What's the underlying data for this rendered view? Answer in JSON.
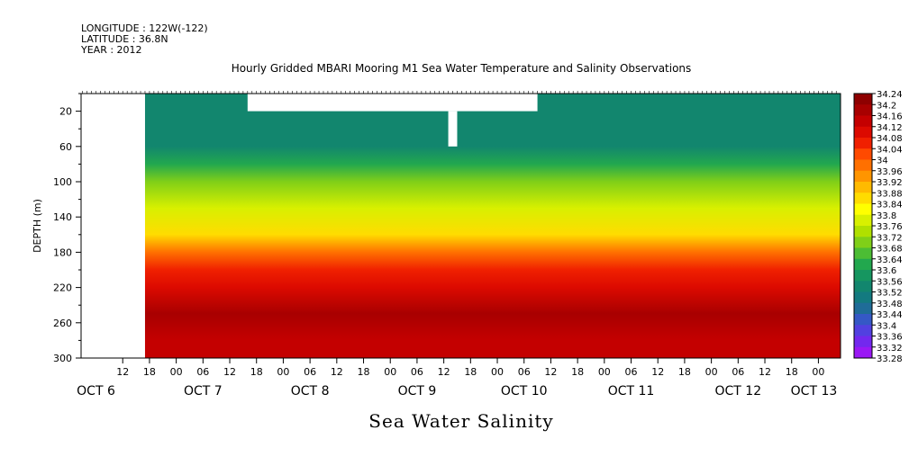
{
  "header": {
    "longitude": "LONGITUDE : 122W(-122)",
    "latitude": "LATITUDE : 36.8N",
    "year": "YEAR : 2012"
  },
  "chart_data": {
    "type": "heatmap",
    "title": "Hourly Gridded MBARI Mooring M1 Sea Water Temperature and Salinity Observations",
    "footer_label": "Sea Water Salinity",
    "ylabel": "DEPTH (m)",
    "ylim": [
      300,
      0
    ],
    "yticks": [
      20,
      60,
      100,
      140,
      180,
      220,
      260,
      300
    ],
    "x_range_hours": [
      0,
      160
    ],
    "x_start": "2012-10-06 00:00",
    "data_start_hour": 17,
    "hour_ticks": [
      {
        "h": 12,
        "label": "12"
      },
      {
        "h": 18,
        "label": "18"
      },
      {
        "h": 24,
        "label": "00"
      },
      {
        "h": 30,
        "label": "06"
      },
      {
        "h": 36,
        "label": "12"
      },
      {
        "h": 42,
        "label": "18"
      },
      {
        "h": 48,
        "label": "00"
      },
      {
        "h": 54,
        "label": "06"
      },
      {
        "h": 60,
        "label": "12"
      },
      {
        "h": 66,
        "label": "18"
      },
      {
        "h": 72,
        "label": "00"
      },
      {
        "h": 78,
        "label": "06"
      },
      {
        "h": 84,
        "label": "12"
      },
      {
        "h": 90,
        "label": "18"
      },
      {
        "h": 96,
        "label": "00"
      },
      {
        "h": 102,
        "label": "06"
      },
      {
        "h": 108,
        "label": "12"
      },
      {
        "h": 114,
        "label": "18"
      },
      {
        "h": 120,
        "label": "00"
      },
      {
        "h": 126,
        "label": "06"
      },
      {
        "h": 132,
        "label": "12"
      },
      {
        "h": 138,
        "label": "18"
      },
      {
        "h": 144,
        "label": "00"
      },
      {
        "h": 150,
        "label": "06"
      },
      {
        "h": 156,
        "label": "12"
      },
      {
        "h": 162,
        "label": "18"
      },
      {
        "h": 168,
        "label": "00"
      },
      {
        "h": 174,
        "label": "06"
      }
    ],
    "date_labels": [
      {
        "h": 6,
        "label": "OCT  6"
      },
      {
        "h": 30,
        "label": "OCT  7"
      },
      {
        "h": 54,
        "label": "OCT  8"
      },
      {
        "h": 78,
        "label": "OCT  9"
      },
      {
        "h": 102,
        "label": "OCT 10"
      },
      {
        "h": 126,
        "label": "OCT 11"
      },
      {
        "h": 150,
        "label": "OCT 12"
      },
      {
        "h": 167,
        "label": "OCT 13"
      }
    ],
    "colorbar": {
      "levels": [
        "34.24",
        "34.2",
        "34.16",
        "34.12",
        "34.08",
        "34.04",
        "34",
        "33.96",
        "33.92",
        "33.88",
        "33.84",
        "33.8",
        "33.76",
        "33.72",
        "33.68",
        "33.64",
        "33.6",
        "33.56",
        "33.52",
        "33.48",
        "33.44",
        "33.4",
        "33.36",
        "33.32",
        "33.28"
      ],
      "colors": [
        "#8e0000",
        "#a80000",
        "#c40000",
        "#dc0a00",
        "#f02000",
        "#ff4a00",
        "#ff7000",
        "#ff9500",
        "#ffba00",
        "#ffdc00",
        "#ffff00",
        "#d8f000",
        "#b0e000",
        "#80cf18",
        "#4cbd34",
        "#22a84e",
        "#169660",
        "#12866e",
        "#137a80",
        "#1f6c98",
        "#3558c6",
        "#5240e0",
        "#7328ee",
        "#9a18f4"
      ]
    },
    "missing_regions": [
      {
        "desc": "no data before start",
        "x0_hour": 0,
        "x1_hour": 17,
        "d0": 0,
        "d1": 300
      },
      {
        "desc": "surface gap",
        "x0_hour": 40,
        "x1_hour": 105,
        "d0": 0,
        "d1": 20
      },
      {
        "desc": "surface gap notch",
        "x0_hour": 85,
        "x1_hour": 87,
        "d0": 20,
        "d1": 60
      }
    ],
    "layers": [
      {
        "depth": 0,
        "salinity": 33.52
      },
      {
        "depth": 20,
        "salinity": 33.52
      },
      {
        "depth": 60,
        "salinity": 33.55
      },
      {
        "depth": 80,
        "salinity": 33.6
      },
      {
        "depth": 100,
        "salinity": 33.7
      },
      {
        "depth": 130,
        "salinity": 33.78
      },
      {
        "depth": 160,
        "salinity": 33.86
      },
      {
        "depth": 180,
        "salinity": 33.96
      },
      {
        "depth": 200,
        "salinity": 34.04
      },
      {
        "depth": 220,
        "salinity": 34.1
      },
      {
        "depth": 250,
        "salinity": 34.16
      },
      {
        "depth": 280,
        "salinity": 34.14
      },
      {
        "depth": 300,
        "salinity": 34.12
      }
    ]
  }
}
